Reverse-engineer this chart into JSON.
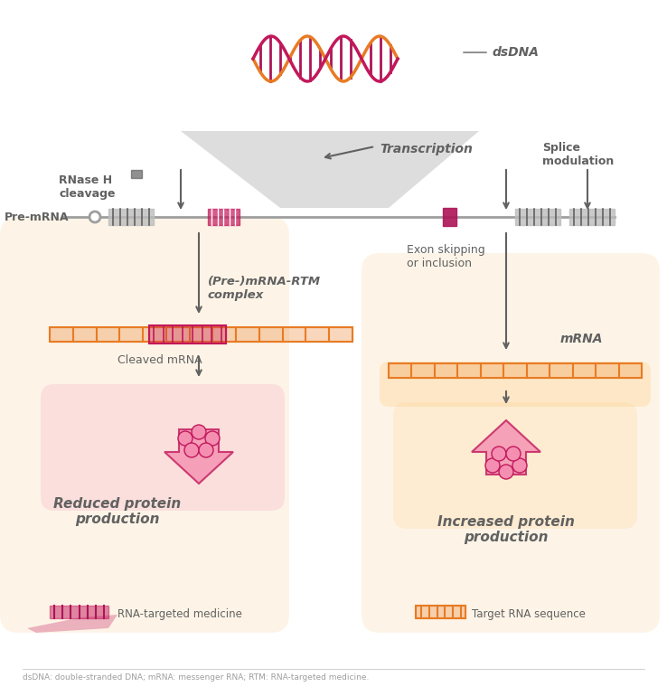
{
  "bg_color": "#ffffff",
  "title_footnote": "dsDNA: double-stranded DNA; mRNA: messenger RNA; RTM: RNA-targeted medicine.",
  "colors": {
    "orange": "#E87B24",
    "pink": "#C2185B",
    "light_pink": "#F48FB1",
    "dark_pink": "#AD1457",
    "light_orange": "#FFCC80",
    "gray": "#9E9E9E",
    "dark_gray": "#616161",
    "light_gray": "#BDBDBD",
    "arrow_gray": "#757575",
    "bg_peach": "#FDEBD0",
    "bg_pink_light": "#FCE4EC"
  },
  "labels": {
    "dsdna": "dsDNA",
    "transcription": "Transcription",
    "rnase_cleavage": "RNase H\ncleavage",
    "splice_modulation": "Splice\nmodulation",
    "pre_mrna": "Pre-mRNA",
    "pre_mrna_rtm": "(Pre-)mRNA-RTM\ncomplex",
    "mrna": "mRNA",
    "exon_skipping": "Exon skipping\nor inclusion",
    "cleaved_mrna": "Cleaved mRNA",
    "reduced_protein": "Reduced protein\nproduction",
    "increased_protein": "Increased protein\nproduction",
    "rna_targeted": "RNA-targeted medicine",
    "target_rna": "Target RNA sequence"
  }
}
